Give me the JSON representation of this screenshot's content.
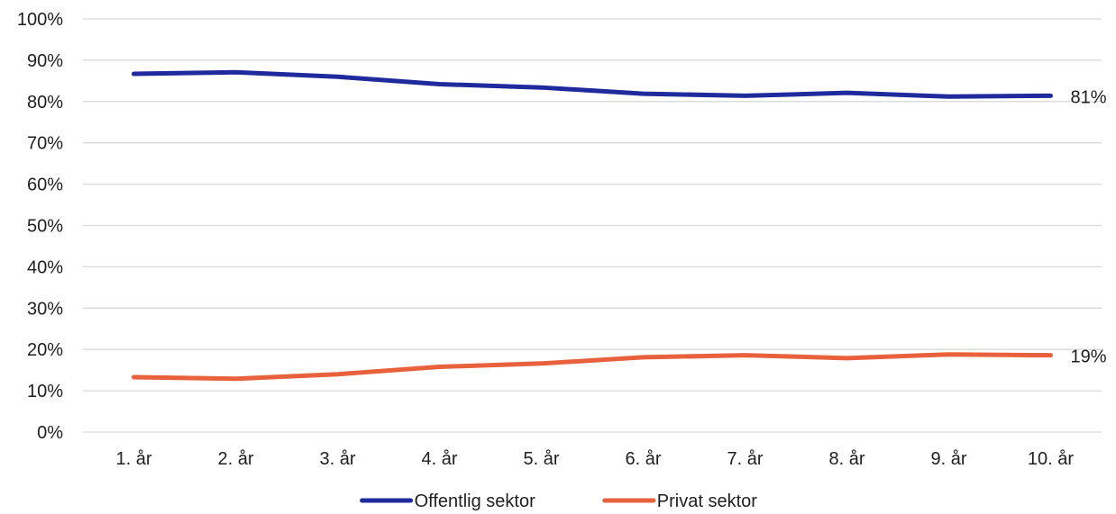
{
  "chart_data": {
    "type": "line",
    "categories": [
      "1. år",
      "2. år",
      "3. år",
      "4. år",
      "5. år",
      "6. år",
      "7. år",
      "8. år",
      "9. år",
      "10. år"
    ],
    "series": [
      {
        "name": "Offentlig sektor",
        "color": "#1f2a9c",
        "values": [
          86.7,
          87.1,
          86.0,
          84.2,
          83.4,
          81.9,
          81.4,
          82.1,
          81.2,
          81.4
        ],
        "end_label": "81%"
      },
      {
        "name": "Privat sektor",
        "color": "#e8603c",
        "values": [
          13.3,
          12.9,
          14.0,
          15.8,
          16.6,
          18.1,
          18.6,
          17.9,
          18.8,
          18.6
        ],
        "end_label": "19%"
      }
    ],
    "ylim": [
      0,
      100
    ],
    "yticks": [
      "0%",
      "10%",
      "20%",
      "30%",
      "40%",
      "50%",
      "60%",
      "70%",
      "80%",
      "90%",
      "100%"
    ],
    "grid": true,
    "legend_position": "bottom"
  }
}
